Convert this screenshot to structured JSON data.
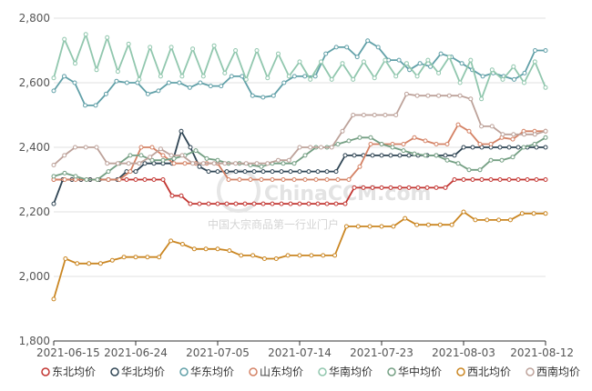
{
  "chart_data": {
    "type": "line",
    "title": "",
    "xlabel": "",
    "ylabel": "",
    "ylim": [
      1800,
      2800
    ],
    "yticks": [
      "1,800",
      "2,000",
      "2,200",
      "2,400",
      "2,600",
      "2,800"
    ],
    "xticks": [
      "2021-06-15",
      "2021-06-24",
      "2021-07-05",
      "2021-07-14",
      "2021-07-23",
      "2021-08-03",
      "2021-08-12"
    ],
    "grid": "horizontal",
    "legend_position": "bottom",
    "watermark": {
      "brand": "ChinaCCM.com",
      "tagline": "中国大宗商品第一行业门户"
    },
    "series": [
      {
        "name": "东北均价",
        "color": "#c23531",
        "values": [
          2300,
          2300,
          2300,
          2300,
          2300,
          2300,
          2300,
          2300,
          2300,
          2300,
          2300,
          2300,
          2300,
          2250,
          2250,
          2225,
          2225,
          2225,
          2225,
          2225,
          2225,
          2225,
          2225,
          2225,
          2225,
          2225,
          2225,
          2225,
          2225,
          2225,
          2225,
          2225,
          2225,
          2275,
          2275,
          2275,
          2275,
          2275,
          2275,
          2275,
          2275,
          2275,
          2275,
          2275,
          2300,
          2300,
          2300,
          2300,
          2300,
          2300,
          2300,
          2300,
          2300,
          2300,
          2300
        ]
      },
      {
        "name": "华北均价",
        "color": "#2f4554",
        "values": [
          2225,
          2300,
          2300,
          2300,
          2300,
          2300,
          2300,
          2300,
          2325,
          2325,
          2350,
          2350,
          2350,
          2350,
          2450,
          2400,
          2340,
          2325,
          2325,
          2325,
          2325,
          2325,
          2325,
          2325,
          2325,
          2325,
          2325,
          2325,
          2325,
          2325,
          2325,
          2325,
          2375,
          2375,
          2375,
          2375,
          2375,
          2375,
          2375,
          2375,
          2375,
          2375,
          2375,
          2375,
          2375,
          2400,
          2400,
          2400,
          2400,
          2400,
          2400,
          2400,
          2400,
          2400,
          2400
        ]
      },
      {
        "name": "华东均价",
        "color": "#61a0a8",
        "values": [
          2575,
          2620,
          2600,
          2530,
          2530,
          2565,
          2605,
          2600,
          2600,
          2565,
          2575,
          2600,
          2600,
          2585,
          2600,
          2590,
          2590,
          2620,
          2620,
          2560,
          2555,
          2560,
          2600,
          2620,
          2620,
          2620,
          2690,
          2710,
          2710,
          2680,
          2730,
          2710,
          2670,
          2670,
          2640,
          2660,
          2650,
          2690,
          2680,
          2660,
          2640,
          2620,
          2630,
          2620,
          2610,
          2630,
          2700,
          2700
        ]
      },
      {
        "name": "山东均价",
        "color": "#d48265",
        "values": [
          2300,
          2300,
          2300,
          2300,
          2300,
          2300,
          2300,
          2325,
          2400,
          2400,
          2375,
          2350,
          2350,
          2350,
          2350,
          2350,
          2300,
          2300,
          2300,
          2300,
          2300,
          2300,
          2300,
          2300,
          2300,
          2300,
          2300,
          2300,
          2340,
          2410,
          2410,
          2410,
          2410,
          2430,
          2420,
          2410,
          2410,
          2470,
          2450,
          2410,
          2410,
          2430,
          2425,
          2450,
          2450,
          2450
        ]
      },
      {
        "name": "华南均价",
        "color": "#91c7ae",
        "values": [
          2615,
          2735,
          2660,
          2750,
          2640,
          2740,
          2635,
          2720,
          2610,
          2710,
          2620,
          2710,
          2620,
          2705,
          2620,
          2715,
          2630,
          2700,
          2610,
          2700,
          2615,
          2690,
          2620,
          2665,
          2610,
          2665,
          2610,
          2660,
          2610,
          2665,
          2615,
          2670,
          2620,
          2660,
          2620,
          2670,
          2630,
          2680,
          2600,
          2670,
          2550,
          2640,
          2610,
          2650,
          2600,
          2665,
          2585
        ]
      },
      {
        "name": "华中均价",
        "color": "#749f83",
        "values": [
          2310,
          2320,
          2310,
          2300,
          2300,
          2325,
          2350,
          2375,
          2375,
          2360,
          2360,
          2365,
          2375,
          2390,
          2365,
          2360,
          2350,
          2350,
          2345,
          2340,
          2350,
          2350,
          2350,
          2375,
          2400,
          2400,
          2410,
          2420,
          2430,
          2430,
          2410,
          2400,
          2390,
          2380,
          2375,
          2375,
          2360,
          2350,
          2330,
          2330,
          2360,
          2360,
          2370,
          2400,
          2410,
          2430
        ]
      },
      {
        "name": "西北均价",
        "color": "#ca8622",
        "values": [
          1930,
          2055,
          2040,
          2040,
          2040,
          2050,
          2060,
          2060,
          2060,
          2060,
          2110,
          2100,
          2085,
          2085,
          2085,
          2080,
          2065,
          2065,
          2055,
          2055,
          2065,
          2065,
          2065,
          2065,
          2065,
          2155,
          2155,
          2155,
          2155,
          2155,
          2180,
          2160,
          2160,
          2160,
          2160,
          2200,
          2175,
          2175,
          2175,
          2175,
          2195,
          2195,
          2195
        ]
      },
      {
        "name": "西南均价",
        "color": "#bda29a",
        "values": [
          2345,
          2375,
          2400,
          2400,
          2400,
          2350,
          2350,
          2350,
          2350,
          2370,
          2395,
          2375,
          2375,
          2350,
          2350,
          2350,
          2350,
          2350,
          2350,
          2350,
          2350,
          2360,
          2360,
          2400,
          2400,
          2400,
          2400,
          2450,
          2500,
          2500,
          2500,
          2500,
          2500,
          2565,
          2560,
          2560,
          2560,
          2560,
          2560,
          2550,
          2465,
          2465,
          2440,
          2440,
          2440,
          2440,
          2450
        ]
      }
    ]
  }
}
